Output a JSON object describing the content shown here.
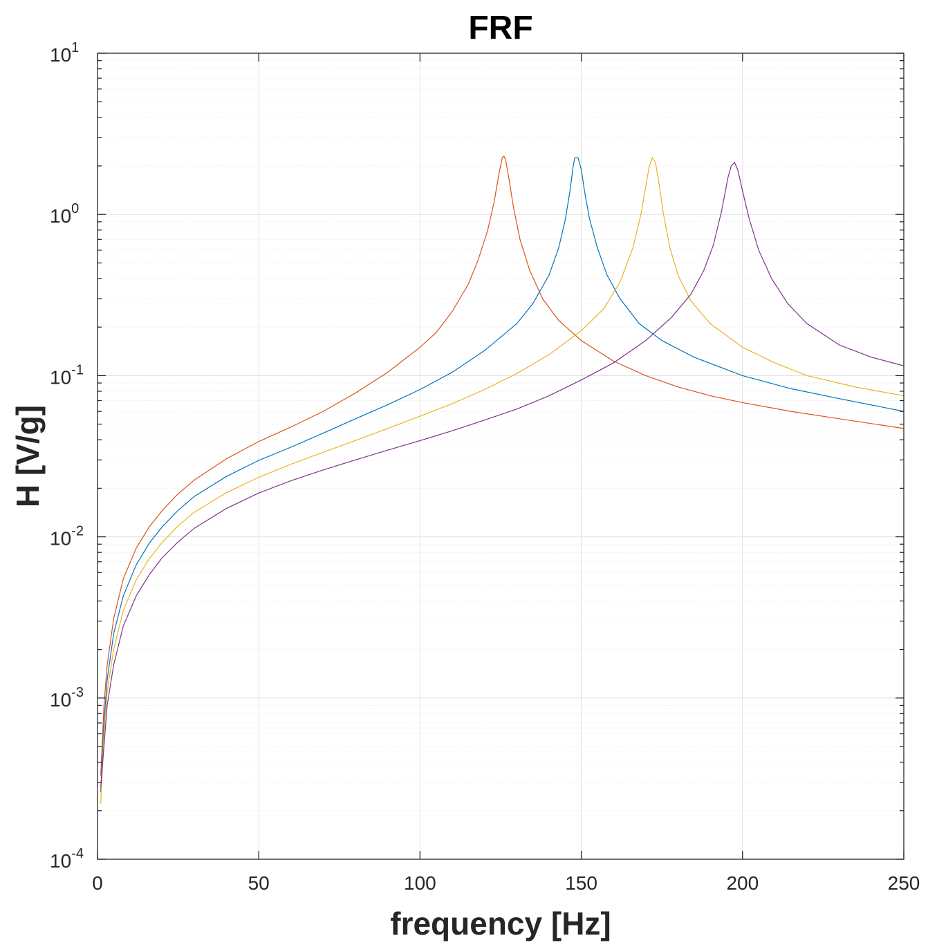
{
  "chart_data": {
    "type": "line",
    "title": "FRF",
    "xlabel": "frequency [Hz]",
    "ylabel": "H [V/g]",
    "xlim": [
      0,
      250
    ],
    "ylim": [
      0.0001,
      10
    ],
    "yscale": "log",
    "grid": true,
    "minor_grid": true,
    "legend": "none",
    "x_ticks": [
      0,
      50,
      100,
      150,
      200,
      250
    ],
    "x_tick_labels": [
      "0",
      "50",
      "100",
      "150",
      "200",
      "250"
    ],
    "y_ticks": [
      0.0001,
      0.001,
      0.01,
      0.1,
      1,
      10
    ],
    "y_tick_labels": [
      {
        "base": "10",
        "exp": "-4"
      },
      {
        "base": "10",
        "exp": "-3"
      },
      {
        "base": "10",
        "exp": "-2"
      },
      {
        "base": "10",
        "exp": "-1"
      },
      {
        "base": "10",
        "exp": "0"
      },
      {
        "base": "10",
        "exp": "1"
      }
    ],
    "series": [
      {
        "color": "#D95319",
        "x": [
          1,
          2,
          3,
          5,
          8,
          12,
          16,
          20,
          25,
          30,
          40,
          50,
          60,
          70,
          80,
          90,
          100,
          105,
          110,
          115,
          118,
          121,
          123,
          124.5,
          125.5,
          126,
          126.5,
          127.5,
          129,
          131,
          134,
          138,
          143,
          150,
          160,
          170,
          180,
          190,
          200,
          215,
          230,
          250
        ],
        "y": [
          0.00033,
          0.0009,
          0.0016,
          0.0031,
          0.0055,
          0.0085,
          0.0115,
          0.0145,
          0.0185,
          0.0225,
          0.0305,
          0.039,
          0.048,
          0.06,
          0.078,
          0.105,
          0.15,
          0.185,
          0.25,
          0.37,
          0.52,
          0.8,
          1.2,
          1.8,
          2.25,
          2.3,
          2.2,
          1.7,
          1.1,
          0.7,
          0.45,
          0.3,
          0.22,
          0.165,
          0.123,
          0.1,
          0.085,
          0.075,
          0.068,
          0.06,
          0.054,
          0.047
        ]
      },
      {
        "color": "#0072BD",
        "x": [
          1,
          2,
          3,
          5,
          8,
          12,
          16,
          20,
          25,
          30,
          40,
          50,
          60,
          70,
          80,
          90,
          100,
          110,
          120,
          130,
          135,
          140,
          143,
          145,
          146.5,
          147.5,
          148,
          149,
          150,
          151,
          152.5,
          155,
          158,
          162,
          168,
          175,
          185,
          200,
          215,
          230,
          250
        ],
        "y": [
          0.00026,
          0.0007,
          0.0013,
          0.0025,
          0.0043,
          0.0067,
          0.0091,
          0.0115,
          0.0146,
          0.0178,
          0.0237,
          0.0298,
          0.036,
          0.044,
          0.054,
          0.066,
          0.082,
          0.105,
          0.143,
          0.21,
          0.28,
          0.42,
          0.62,
          0.92,
          1.4,
          2.0,
          2.25,
          2.25,
          1.9,
          1.4,
          0.95,
          0.62,
          0.42,
          0.3,
          0.21,
          0.165,
          0.13,
          0.1,
          0.083,
          0.072,
          0.06
        ]
      },
      {
        "color": "#EDB120",
        "x": [
          1,
          2,
          3,
          5,
          8,
          12,
          16,
          20,
          25,
          30,
          40,
          50,
          60,
          70,
          80,
          90,
          100,
          110,
          120,
          130,
          140,
          150,
          157,
          162,
          166,
          168.5,
          170,
          171,
          172,
          173,
          174,
          175.5,
          177.5,
          180,
          184,
          190,
          200,
          210,
          220,
          235,
          250
        ],
        "y": [
          0.00022,
          0.0006,
          0.0011,
          0.002,
          0.0035,
          0.0054,
          0.0073,
          0.0092,
          0.0117,
          0.0142,
          0.0188,
          0.0234,
          0.0282,
          0.0335,
          0.0396,
          0.047,
          0.056,
          0.067,
          0.082,
          0.103,
          0.135,
          0.19,
          0.26,
          0.38,
          0.62,
          1.0,
          1.5,
          1.95,
          2.25,
          2.1,
          1.6,
          1.0,
          0.62,
          0.42,
          0.29,
          0.21,
          0.15,
          0.12,
          0.1,
          0.085,
          0.075
        ]
      },
      {
        "color": "#7E2F8E",
        "x": [
          1,
          2,
          3,
          5,
          8,
          12,
          16,
          20,
          25,
          30,
          40,
          50,
          60,
          70,
          80,
          90,
          100,
          110,
          120,
          130,
          140,
          150,
          160,
          170,
          178,
          184,
          188,
          191,
          193.5,
          195.5,
          196.5,
          197.5,
          198.5,
          200,
          202,
          205,
          209,
          214,
          220,
          230,
          240,
          250
        ],
        "y": [
          0.00028,
          0.0005,
          0.0009,
          0.0016,
          0.0028,
          0.0043,
          0.0058,
          0.0074,
          0.0093,
          0.0113,
          0.015,
          0.0187,
          0.0223,
          0.026,
          0.03,
          0.0345,
          0.0395,
          0.0455,
          0.053,
          0.062,
          0.075,
          0.094,
          0.12,
          0.165,
          0.23,
          0.32,
          0.45,
          0.65,
          1.05,
          1.7,
          2.0,
          2.1,
          1.9,
          1.4,
          0.95,
          0.6,
          0.4,
          0.28,
          0.21,
          0.155,
          0.13,
          0.115
        ]
      }
    ]
  }
}
